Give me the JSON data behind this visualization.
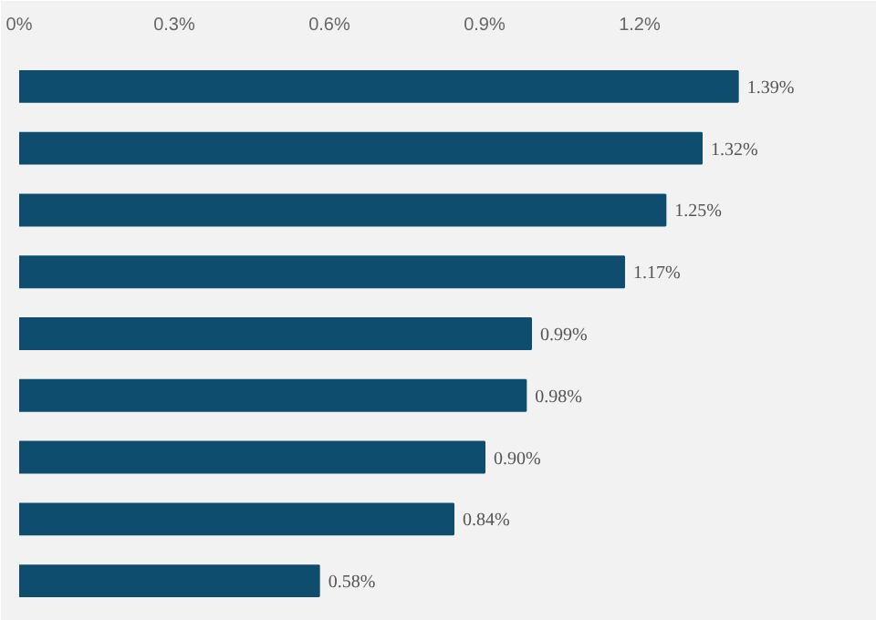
{
  "chart_data": {
    "type": "bar",
    "orientation": "horizontal",
    "categories": [
      null,
      null,
      null,
      null,
      null,
      null,
      null,
      null,
      null
    ],
    "values": [
      1.39,
      1.32,
      1.25,
      1.17,
      0.99,
      0.98,
      0.9,
      0.84,
      0.58
    ],
    "value_labels": [
      "1.39%",
      "1.32%",
      "1.25%",
      "1.17%",
      "0.99%",
      "0.98%",
      "0.90%",
      "0.84%",
      "0.58%"
    ],
    "color": "#0e4d6e",
    "xlim": [
      0,
      1.5
    ],
    "xticks": [
      {
        "value": 0,
        "label": "0%"
      },
      {
        "value": 0.3,
        "label": "0.3%"
      },
      {
        "value": 0.6,
        "label": "0.6%"
      },
      {
        "value": 0.9,
        "label": "0.9%"
      },
      {
        "value": 1.2,
        "label": "1.2%"
      }
    ],
    "grid": false,
    "tick_labels": "x"
  }
}
